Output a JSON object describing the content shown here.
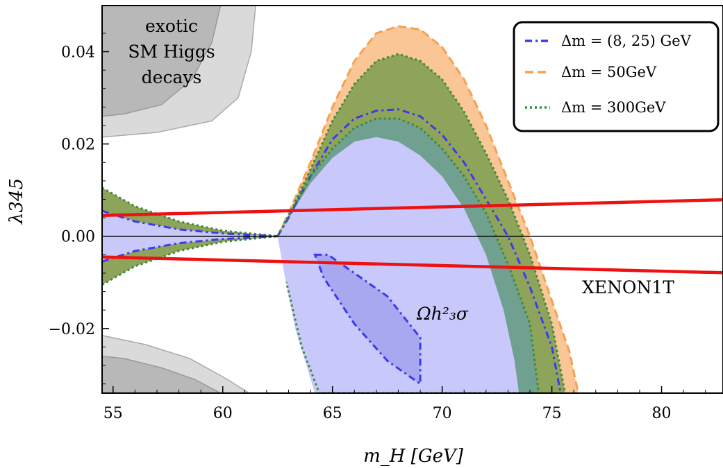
{
  "chart_data": {
    "type": "area",
    "xlabel": "m_H [GeV]",
    "ylabel": "λ345",
    "xlim": [
      54.5,
      82.8
    ],
    "ylim": [
      -0.034,
      0.05
    ],
    "xticks": [
      "55",
      "60",
      "65",
      "70",
      "75",
      "80"
    ],
    "yticks": [
      "−0.02",
      "0.00",
      "0.02",
      "0.04"
    ],
    "grid": false,
    "legend_position": "top-right",
    "legend": [
      {
        "label": "Δm = (8, 25) GeV",
        "color": "#3a3af0",
        "style": "dashdot"
      },
      {
        "label": "Δm = 50GeV",
        "color": "#f5a050",
        "style": "dashed"
      },
      {
        "label": "Δm = 300GeV",
        "color": "#3a8a3a",
        "style": "dotted"
      }
    ],
    "annotations": {
      "exotic": [
        "exotic",
        "SM Higgs",
        "decays"
      ],
      "xenon": "XENON1T",
      "omega": "Ωh²₃σ"
    },
    "colors": {
      "blue_band": "#c8c8fa",
      "blue_inner": "#a8a8f0",
      "orange_band": "#fbc696",
      "green_band": "#8da45a",
      "teal_band": "#6fa090",
      "gray_dark": "#b8b8b8",
      "gray_light": "#dadada",
      "xenon": "#ee1111"
    },
    "series": [
      {
        "name": "Δm = 50GeV",
        "upper": [
          [
            62.5,
            0.0
          ],
          [
            63,
            0.005
          ],
          [
            64,
            0.016
          ],
          [
            65,
            0.028
          ],
          [
            66,
            0.038
          ],
          [
            67,
            0.044
          ],
          [
            68,
            0.0455
          ],
          [
            69,
            0.0448
          ],
          [
            70,
            0.041
          ],
          [
            71,
            0.034
          ],
          [
            72,
            0.024
          ],
          [
            73,
            0.012
          ],
          [
            74,
            0.0
          ],
          [
            75,
            -0.014
          ],
          [
            75.8,
            -0.025
          ],
          [
            76.2,
            -0.034
          ]
        ]
      },
      {
        "name": "Δm = 300GeV",
        "upper": [
          [
            62.5,
            0.0
          ],
          [
            63,
            0.0045
          ],
          [
            64,
            0.0145
          ],
          [
            65,
            0.025
          ],
          [
            66,
            0.033
          ],
          [
            67,
            0.038
          ],
          [
            68,
            0.0395
          ],
          [
            69,
            0.038
          ],
          [
            70,
            0.034
          ],
          [
            71,
            0.027
          ],
          [
            72,
            0.018
          ],
          [
            73,
            0.008
          ],
          [
            74,
            -0.004
          ],
          [
            75,
            -0.019
          ],
          [
            75.6,
            -0.034
          ]
        ]
      },
      {
        "name": "Δm = (8, 25) GeV",
        "upper": [
          [
            62.5,
            0.0
          ],
          [
            63,
            0.004
          ],
          [
            64,
            0.013
          ],
          [
            65,
            0.021
          ],
          [
            66,
            0.0255
          ],
          [
            67,
            0.0272
          ],
          [
            68,
            0.0275
          ],
          [
            69,
            0.026
          ],
          [
            70,
            0.022
          ],
          [
            71,
            0.016
          ],
          [
            72,
            0.008
          ],
          [
            73,
            0.0
          ],
          [
            74,
            -0.011
          ],
          [
            75,
            -0.024
          ],
          [
            75.4,
            -0.034
          ]
        ]
      }
    ],
    "xenon_lines": [
      {
        "x": [
          54.5,
          82.8
        ],
        "y": [
          0.0045,
          0.0079
        ]
      },
      {
        "x": [
          54.5,
          82.8
        ],
        "y": [
          -0.0045,
          -0.0079
        ]
      }
    ]
  }
}
